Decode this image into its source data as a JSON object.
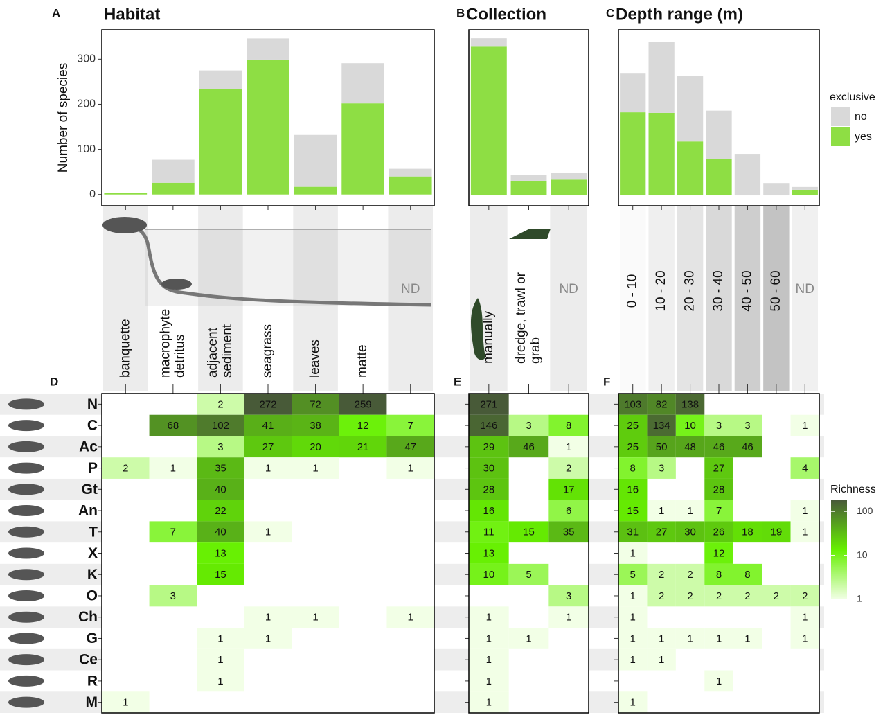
{
  "chart_data": [
    {
      "label": "A",
      "type": "bar",
      "stacked": true,
      "title": "Habitat",
      "y_label": "Number of species",
      "categories": [
        "banquette",
        "macrophyte detritus",
        "adjacent sediment",
        "seagrass",
        "leaves",
        "matte",
        "ND"
      ],
      "series": [
        {
          "color": "#d9d9d9",
          "values": [
            0,
            51,
            41,
            47,
            115,
            89,
            17
          ]
        },
        {
          "color": "#8ede44",
          "values": [
            4,
            26,
            234,
            299,
            17,
            202,
            40
          ]
        }
      ],
      "ylim": [
        -25,
        365
      ],
      "yticks": [
        0,
        100,
        200,
        300
      ]
    },
    {
      "label": "B",
      "type": "bar",
      "stacked": true,
      "title": "Collection",
      "categories": [
        "manually",
        "dredge, trawl or grab",
        "ND"
      ],
      "series": [
        {
          "color": "#d9d9d9",
          "values": [
            15,
            10,
            12
          ]
        },
        {
          "color": "#8ede44",
          "values": [
            265,
            26,
            28
          ]
        }
      ],
      "ylim": [
        -18.5,
        295
      ]
    },
    {
      "label": "C",
      "type": "bar",
      "stacked": true,
      "title": "Depth range (m)",
      "categories": [
        "0 - 10",
        "10 - 20",
        "20 - 30",
        "30 - 40",
        "40 - 50",
        "50 - 60",
        "ND"
      ],
      "series": [
        {
          "name": "no",
          "color": "#d9d9d9",
          "values": [
            69,
            127,
            117,
            86,
            74,
            22,
            5
          ]
        },
        {
          "name": "yes",
          "color": "#8ede44",
          "values": [
            148,
            147,
            96,
            65,
            0,
            0,
            10
          ]
        }
      ],
      "ylim": [
        -18.5,
        295
      ],
      "legend_title": "exclusive",
      "legend": "right"
    },
    {
      "label": "D",
      "type": "heatmap",
      "rows": [
        "N",
        "C",
        "Ac",
        "P",
        "Gt",
        "An",
        "T",
        "X",
        "K",
        "O",
        "Ch",
        "G",
        "Ce",
        "R",
        "M"
      ],
      "values": [
        [
          null,
          null,
          2,
          272,
          72,
          259,
          null
        ],
        [
          null,
          68,
          102,
          41,
          38,
          12,
          7
        ],
        [
          null,
          null,
          3,
          27,
          20,
          21,
          47
        ],
        [
          2,
          1,
          35,
          1,
          1,
          null,
          1
        ],
        [
          null,
          null,
          40,
          null,
          null,
          null,
          null
        ],
        [
          null,
          null,
          22,
          null,
          null,
          null,
          null
        ],
        [
          null,
          7,
          40,
          1,
          null,
          null,
          null
        ],
        [
          null,
          null,
          13,
          null,
          null,
          null,
          null
        ],
        [
          null,
          null,
          15,
          null,
          null,
          null,
          null
        ],
        [
          null,
          3,
          null,
          null,
          null,
          null,
          null
        ],
        [
          null,
          null,
          null,
          1,
          1,
          null,
          1
        ],
        [
          null,
          null,
          1,
          1,
          null,
          null,
          null
        ],
        [
          null,
          null,
          1,
          null,
          null,
          null,
          null
        ],
        [
          null,
          null,
          1,
          null,
          null,
          null,
          null
        ],
        [
          1,
          null,
          null,
          null,
          null,
          null,
          null
        ]
      ]
    },
    {
      "label": "E",
      "type": "heatmap",
      "values": [
        [
          271,
          null,
          null
        ],
        [
          146,
          3,
          8
        ],
        [
          29,
          46,
          1
        ],
        [
          30,
          null,
          2
        ],
        [
          28,
          null,
          17
        ],
        [
          16,
          null,
          6
        ],
        [
          11,
          15,
          35
        ],
        [
          13,
          null,
          null
        ],
        [
          10,
          5,
          null
        ],
        [
          null,
          null,
          3
        ],
        [
          1,
          null,
          1
        ],
        [
          1,
          1,
          null
        ],
        [
          1,
          null,
          null
        ],
        [
          1,
          null,
          null
        ],
        [
          1,
          null,
          null
        ]
      ]
    },
    {
      "label": "F",
      "type": "heatmap",
      "values": [
        [
          103,
          82,
          138,
          null,
          null,
          null,
          null
        ],
        [
          25,
          134,
          10,
          3,
          3,
          null,
          1
        ],
        [
          25,
          50,
          48,
          46,
          46,
          null,
          null
        ],
        [
          8,
          3,
          null,
          27,
          null,
          null,
          4
        ],
        [
          16,
          null,
          null,
          28,
          null,
          null,
          null
        ],
        [
          15,
          1,
          1,
          7,
          null,
          null,
          1
        ],
        [
          31,
          27,
          30,
          26,
          18,
          19,
          1
        ],
        [
          1,
          null,
          null,
          12,
          null,
          null,
          null
        ],
        [
          5,
          2,
          2,
          8,
          8,
          null,
          null
        ],
        [
          1,
          2,
          2,
          2,
          2,
          2,
          2
        ],
        [
          1,
          null,
          null,
          null,
          null,
          null,
          1
        ],
        [
          1,
          1,
          1,
          1,
          1,
          null,
          1
        ],
        [
          1,
          1,
          null,
          null,
          null,
          null,
          null
        ],
        [
          null,
          null,
          null,
          1,
          null,
          null,
          null
        ],
        [
          1,
          null,
          null,
          null,
          null,
          null,
          null
        ]
      ],
      "colorbar_title": "Richness",
      "log_scale": true,
      "clim": [
        1,
        180
      ],
      "colorbar_ticks": [
        1,
        10,
        100
      ],
      "colorscale": [
        "#f2ffe6",
        "#66f000",
        "#485a38"
      ]
    }
  ]
}
